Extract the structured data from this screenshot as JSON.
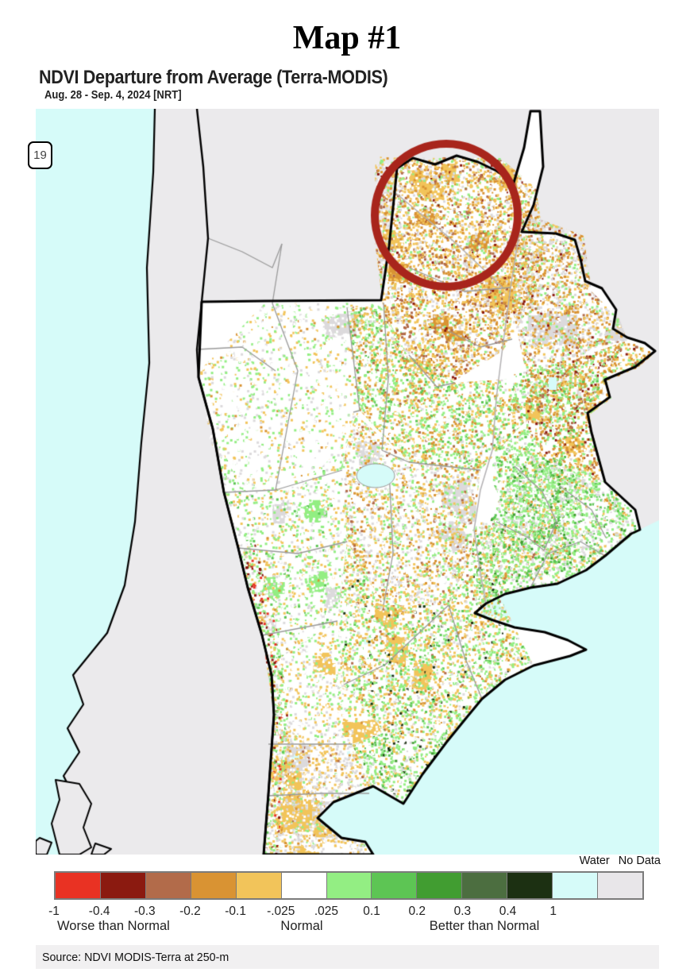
{
  "header": {
    "map_number": "Map #1",
    "product_title": "NDVI Departure from Average (Terra-MODIS)",
    "date_range": "Aug. 28 - Sep. 4, 2024 [NRT]"
  },
  "map": {
    "route_shield_label": "19",
    "colors": {
      "ocean": "#d6fbf9",
      "land_outside_data": "#ebeaec",
      "data_background": "#ffffff",
      "no_data_speck": "#dcdadc",
      "country_border": "#000000",
      "province_border": "#9a9a9a",
      "river": "#b3b1b3",
      "annotation_circle": "#a8251c",
      "lake": "#d6fbf9"
    },
    "annotation": {
      "shape": "circle",
      "color": "#a8251c",
      "description": "thick dark-red circle highlighting drought area in the north (western Paraguay / Chaco)"
    }
  },
  "legend": {
    "tick_labels": [
      "-1",
      "-0.4",
      "-0.3",
      "-0.2",
      "-0.1",
      "-.025",
      ".025",
      "0.1",
      "0.2",
      "0.3",
      "0.4",
      "1"
    ],
    "classes": [
      {
        "color": "#e93223",
        "range": "-1 to -0.4"
      },
      {
        "color": "#8b1a10",
        "range": "-0.4 to -0.3"
      },
      {
        "color": "#b26b4a",
        "range": "-0.3 to -0.2"
      },
      {
        "color": "#d99333",
        "range": "-0.2 to -0.1"
      },
      {
        "color": "#f2c45a",
        "range": "-0.1 to -.025"
      },
      {
        "color": "#ffffff",
        "range": "-.025 to .025"
      },
      {
        "color": "#93ee83",
        "range": ".025 to 0.1"
      },
      {
        "color": "#5dc554",
        "range": "0.1 to 0.2"
      },
      {
        "color": "#419d31",
        "range": "0.2 to 0.3"
      },
      {
        "color": "#4c6e40",
        "range": "0.3 to 0.4"
      },
      {
        "color": "#1c3012",
        "range": "0.4 to 1"
      }
    ],
    "water": {
      "label": "Water",
      "color": "#d6fbf9"
    },
    "no_data": {
      "label": "No Data",
      "color": "#e8e6e9"
    },
    "category_labels": [
      "Worse than Normal",
      "Normal",
      "Better than Normal"
    ]
  },
  "footer": {
    "source": "Source: NDVI MODIS-Terra at 250-m"
  }
}
